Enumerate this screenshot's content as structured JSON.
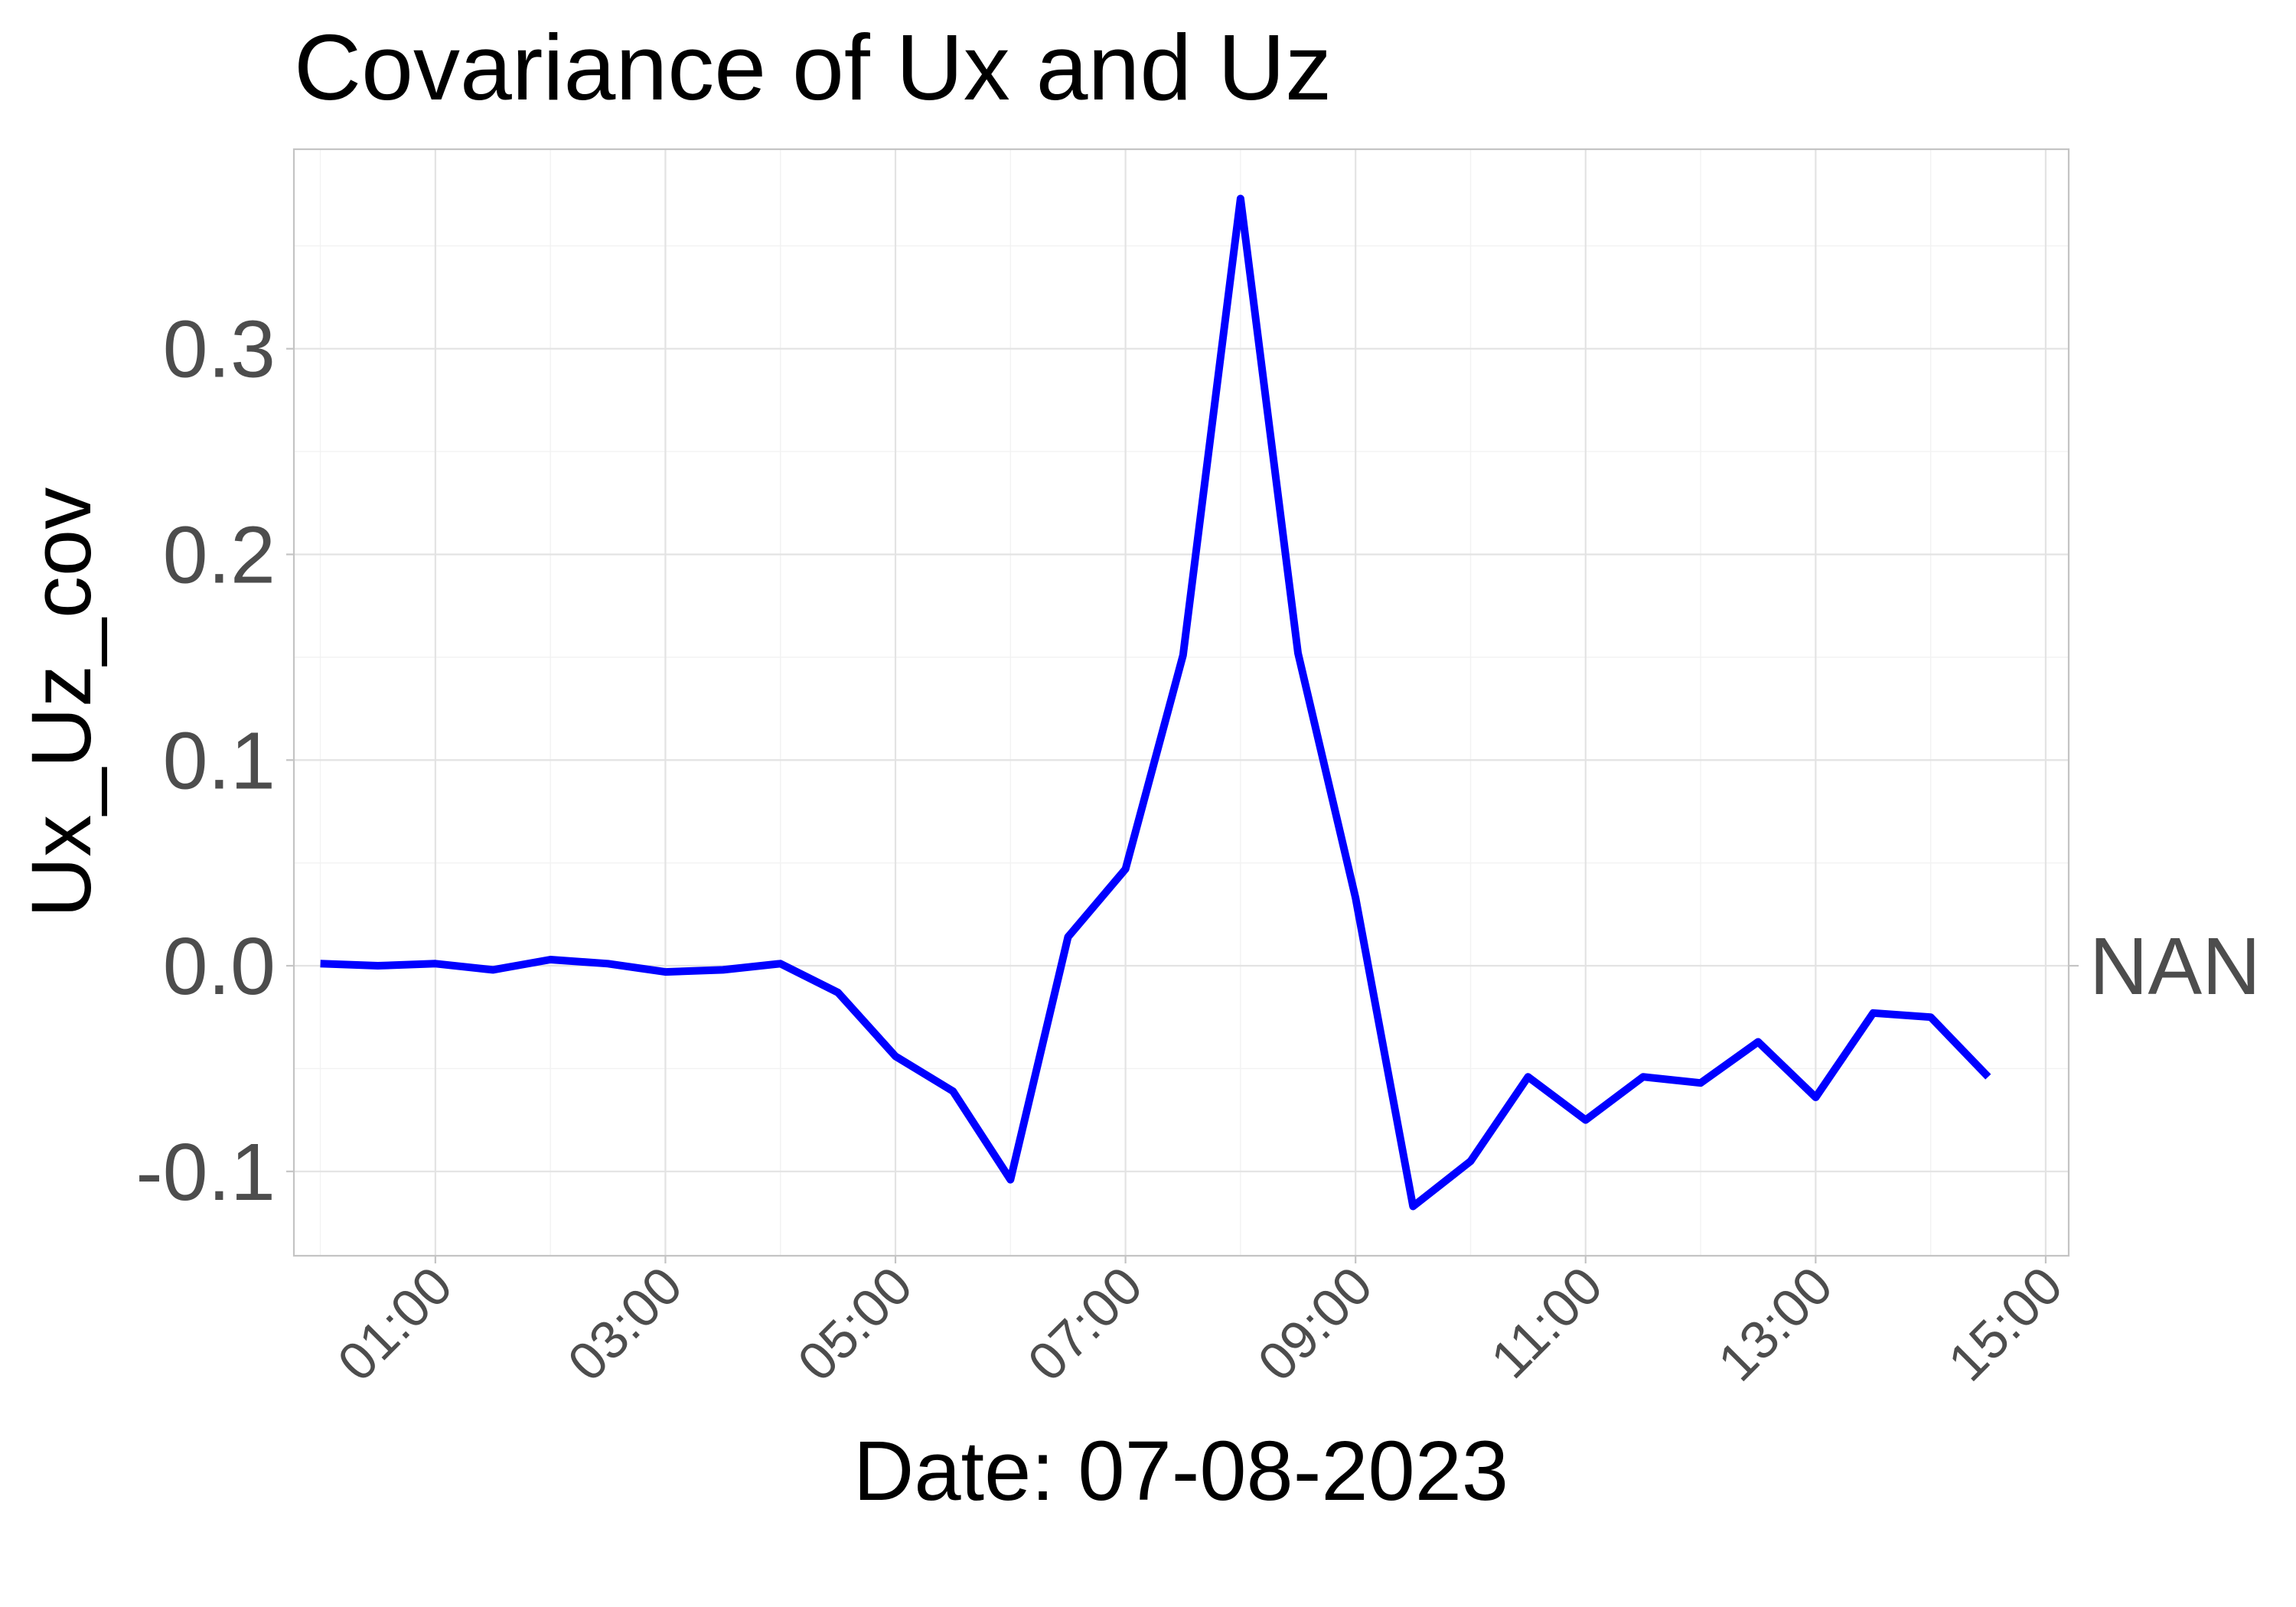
{
  "chart_data": {
    "type": "line",
    "title": "Covariance of Ux and Uz",
    "xlabel": "Date: 07-08-2023",
    "ylabel": "Ux_Uz_cov",
    "secondary_axis_label": "NAN",
    "x_tick_labels": [
      "01:00",
      "03:00",
      "05:00",
      "07:00",
      "09:00",
      "11:00",
      "13:00",
      "15:00"
    ],
    "x_tick_hours": [
      1,
      3,
      5,
      7,
      9,
      11,
      13,
      15
    ],
    "y_tick_labels": [
      "-0.1",
      "0.0",
      "0.1",
      "0.2",
      "0.3"
    ],
    "y_tick_values": [
      -0.1,
      0.0,
      0.1,
      0.2,
      0.3
    ],
    "xlim": [
      -0.23,
      15.2
    ],
    "ylim": [
      -0.141,
      0.397
    ],
    "grid": true,
    "x_unit": "hour of day",
    "series": [
      {
        "color": "#0000ff",
        "x": [
          0,
          0.5,
          1,
          1.5,
          2,
          2.5,
          3,
          3.5,
          4,
          4.5,
          5,
          5.5,
          6,
          6.5,
          7,
          7.5,
          8,
          8.5,
          9,
          9.5,
          10,
          10.5,
          11,
          11.5,
          12,
          12.5,
          13,
          13.5,
          14,
          14.5
        ],
        "values": [
          0.001,
          0.0,
          0.001,
          -0.002,
          0.003,
          0.001,
          -0.003,
          -0.002,
          0.001,
          -0.013,
          -0.044,
          -0.061,
          -0.104,
          0.014,
          0.047,
          0.151,
          0.373,
          0.152,
          0.033,
          -0.117,
          -0.095,
          -0.054,
          -0.075,
          -0.054,
          -0.057,
          -0.037,
          -0.064,
          -0.023,
          -0.025,
          -0.054
        ]
      }
    ]
  }
}
